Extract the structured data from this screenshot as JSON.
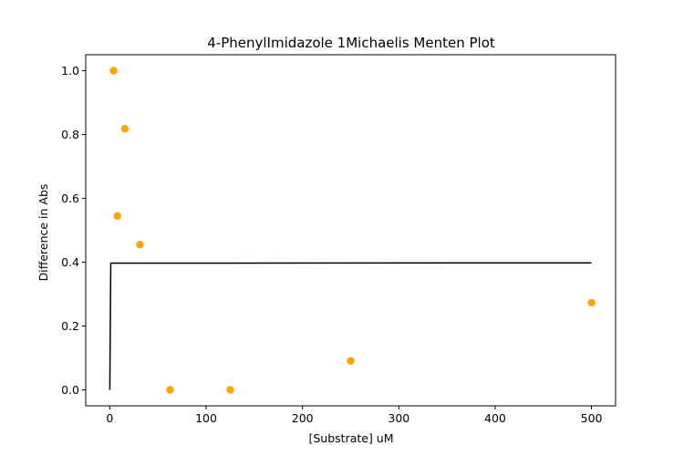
{
  "chart_data": {
    "type": "scatter",
    "title": "4-PhenylImidazole 1Michaelis Menten Plot",
    "xlabel": "[Substrate] uM",
    "ylabel": "Difference in Abs",
    "xlim": [
      -25,
      525
    ],
    "ylim": [
      -0.05,
      1.05
    ],
    "xticks": [
      0,
      100,
      200,
      300,
      400,
      500
    ],
    "yticks": [
      0.0,
      0.2,
      0.4,
      0.6,
      0.8,
      1.0
    ],
    "xtick_labels": [
      "0",
      "100",
      "200",
      "300",
      "400",
      "500"
    ],
    "ytick_labels": [
      "0.0",
      "0.2",
      "0.4",
      "0.6",
      "0.8",
      "1.0"
    ],
    "grid": false,
    "series": [
      {
        "type": "scatter",
        "color": "#ffa500",
        "points": [
          {
            "x": 3.9,
            "y": 1.0
          },
          {
            "x": 7.8,
            "y": 0.545
          },
          {
            "x": 15.6,
            "y": 0.818
          },
          {
            "x": 31.25,
            "y": 0.455
          },
          {
            "x": 62.5,
            "y": 0.0
          },
          {
            "x": 125,
            "y": 0.0
          },
          {
            "x": 250,
            "y": 0.091
          },
          {
            "x": 500,
            "y": 0.273
          }
        ]
      },
      {
        "type": "line",
        "color": "#000000",
        "points": [
          {
            "x": 0,
            "y": 0.0
          },
          {
            "x": 1,
            "y": 0.397
          },
          {
            "x": 500,
            "y": 0.398
          }
        ]
      }
    ]
  }
}
